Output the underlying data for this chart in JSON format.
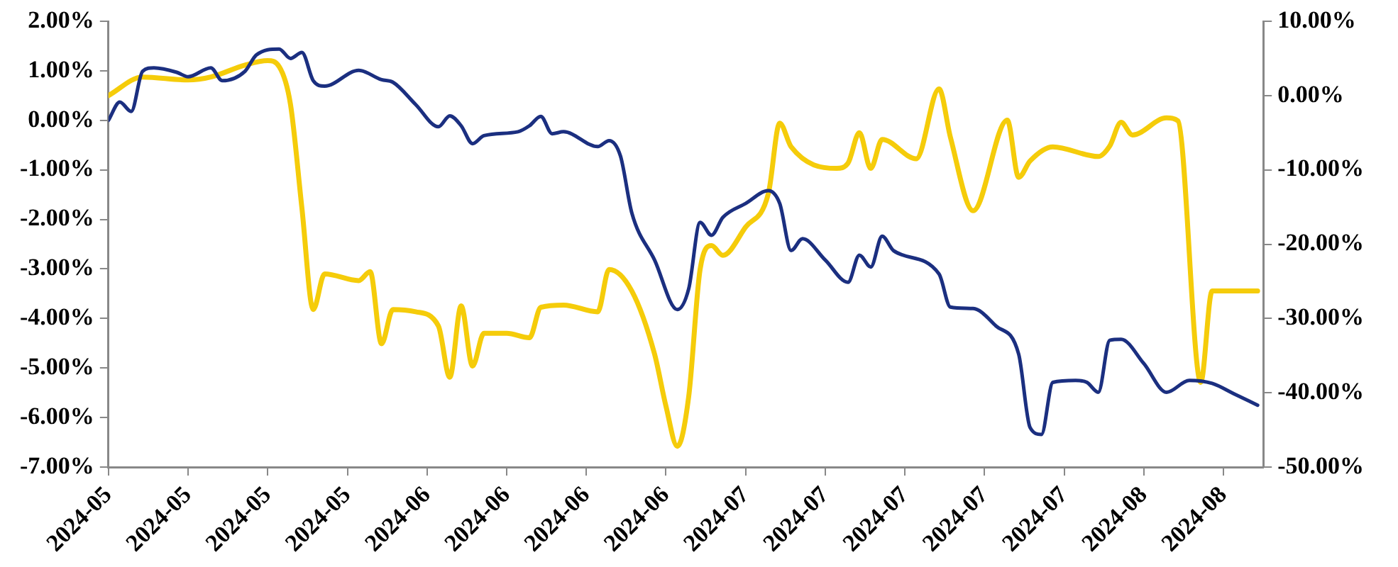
{
  "chart_data": {
    "type": "line",
    "xlim": [
      "2024-05-06",
      "2024-08-15T12:00"
    ],
    "xticks": [
      {
        "value": "2024-05-06",
        "label": "2024-05"
      },
      {
        "value": "2024-05-13",
        "label": "2024-05"
      },
      {
        "value": "2024-05-20",
        "label": "2024-05"
      },
      {
        "value": "2024-05-27",
        "label": "2024-05"
      },
      {
        "value": "2024-06-03",
        "label": "2024-06"
      },
      {
        "value": "2024-06-10",
        "label": "2024-06"
      },
      {
        "value": "2024-06-17",
        "label": "2024-06"
      },
      {
        "value": "2024-06-24",
        "label": "2024-06"
      },
      {
        "value": "2024-07-01",
        "label": "2024-07"
      },
      {
        "value": "2024-07-08",
        "label": "2024-07"
      },
      {
        "value": "2024-07-15",
        "label": "2024-07"
      },
      {
        "value": "2024-07-22",
        "label": "2024-07"
      },
      {
        "value": "2024-07-29",
        "label": "2024-07"
      },
      {
        "value": "2024-08-05",
        "label": "2024-08"
      },
      {
        "value": "2024-08-12",
        "label": "2024-08"
      }
    ],
    "ylim": [
      -7,
      2
    ],
    "yticks": [
      {
        "value": 2,
        "label": "2.00%"
      },
      {
        "value": 1,
        "label": "1.00%"
      },
      {
        "value": 0,
        "label": "0.00%"
      },
      {
        "value": -1,
        "label": "-1.00%"
      },
      {
        "value": -2,
        "label": "-2.00%"
      },
      {
        "value": -3,
        "label": "-3.00%"
      },
      {
        "value": -4,
        "label": "-4.00%"
      },
      {
        "value": -5,
        "label": "-5.00%"
      },
      {
        "value": -6,
        "label": "-6.00%"
      },
      {
        "value": -7,
        "label": "-7.00%"
      }
    ],
    "y2lim": [
      -50,
      10
    ],
    "y2ticks": [
      {
        "value": 10,
        "label": "10.00%"
      },
      {
        "value": 0,
        "label": "0.00%"
      },
      {
        "value": -10,
        "label": "-10.00%"
      },
      {
        "value": -20,
        "label": "-20.00%"
      },
      {
        "value": -30,
        "label": "-30.00%"
      },
      {
        "value": -40,
        "label": "-40.00%"
      },
      {
        "value": -50,
        "label": "-50.00%"
      }
    ],
    "grid": false,
    "legend": false,
    "series": [
      {
        "color": "#1b2f80",
        "axis": "y",
        "x": [
          "2024-05-06",
          "2024-05-07",
          "2024-05-08",
          "2024-05-09",
          "2024-05-10",
          "2024-05-12",
          "2024-05-13",
          "2024-05-15",
          "2024-05-16",
          "2024-05-18",
          "2024-05-19",
          "2024-05-21",
          "2024-05-22",
          "2024-05-23",
          "2024-05-24",
          "2024-05-25",
          "2024-05-28",
          "2024-05-30",
          "2024-05-31",
          "2024-06-02",
          "2024-06-04",
          "2024-06-05",
          "2024-06-06",
          "2024-06-07",
          "2024-06-08",
          "2024-06-11",
          "2024-06-12",
          "2024-06-13",
          "2024-06-14",
          "2024-06-15",
          "2024-06-18",
          "2024-06-19",
          "2024-06-20",
          "2024-06-21",
          "2024-06-23",
          "2024-06-25",
          "2024-06-26",
          "2024-06-27",
          "2024-06-28",
          "2024-06-29",
          "2024-07-01",
          "2024-07-03",
          "2024-07-04",
          "2024-07-05",
          "2024-07-06",
          "2024-07-08",
          "2024-07-10",
          "2024-07-11",
          "2024-07-12",
          "2024-07-13",
          "2024-07-14",
          "2024-07-18",
          "2024-07-19",
          "2024-07-21",
          "2024-07-23",
          "2024-07-25",
          "2024-07-26",
          "2024-07-27",
          "2024-07-28",
          "2024-07-30",
          "2024-07-31",
          "2024-08-01",
          "2024-08-02",
          "2024-08-03",
          "2024-08-05",
          "2024-08-07",
          "2024-08-09",
          "2024-08-11",
          "2024-08-13",
          "2024-08-15"
        ],
        "values": [
          0.0,
          0.37,
          0.18,
          0.99,
          1.06,
          0.97,
          0.88,
          1.06,
          0.8,
          0.99,
          1.32,
          1.44,
          1.25,
          1.37,
          0.8,
          0.69,
          1.01,
          0.82,
          0.77,
          0.32,
          -0.13,
          0.09,
          -0.11,
          -0.47,
          -0.31,
          -0.23,
          -0.11,
          0.08,
          -0.27,
          -0.23,
          -0.53,
          -0.41,
          -0.72,
          -1.87,
          -2.82,
          -3.82,
          -3.4,
          -2.06,
          -2.32,
          -1.96,
          -1.68,
          -1.42,
          -1.68,
          -2.63,
          -2.39,
          -2.82,
          -3.27,
          -2.72,
          -2.96,
          -2.34,
          -2.63,
          -3.1,
          -3.77,
          -3.8,
          -4.15,
          -4.72,
          -6.2,
          -6.34,
          -5.29,
          -5.25,
          -5.29,
          -5.49,
          -4.44,
          -4.42,
          -4.91,
          -5.49,
          -5.25,
          -5.31,
          -5.53,
          -5.75
        ]
      },
      {
        "color": "#f5cc0a",
        "axis": "y2",
        "x": [
          "2024-05-06",
          "2024-05-09",
          "2024-05-13",
          "2024-05-15",
          "2024-05-18",
          "2024-05-20",
          "2024-05-21",
          "2024-05-22",
          "2024-05-23",
          "2024-05-24",
          "2024-05-25",
          "2024-05-28",
          "2024-05-29",
          "2024-05-30",
          "2024-05-31",
          "2024-06-02",
          "2024-06-04",
          "2024-06-05",
          "2024-06-06",
          "2024-06-07",
          "2024-06-08",
          "2024-06-10",
          "2024-06-12",
          "2024-06-13",
          "2024-06-15",
          "2024-06-18",
          "2024-06-19",
          "2024-06-21",
          "2024-06-23",
          "2024-06-24",
          "2024-06-25",
          "2024-06-26",
          "2024-06-27",
          "2024-06-28",
          "2024-06-29",
          "2024-07-01",
          "2024-07-03",
          "2024-07-04",
          "2024-07-05",
          "2024-07-09",
          "2024-07-10",
          "2024-07-11",
          "2024-07-12",
          "2024-07-13",
          "2024-07-16",
          "2024-07-18",
          "2024-07-19",
          "2024-07-21",
          "2024-07-24",
          "2024-07-25",
          "2024-07-26",
          "2024-07-28",
          "2024-08-01",
          "2024-08-02",
          "2024-08-03",
          "2024-08-04",
          "2024-08-07",
          "2024-08-08",
          "2024-08-10",
          "2024-08-11",
          "2024-08-15"
        ],
        "values": [
          0,
          2.5,
          2.1,
          2.5,
          4.1,
          4.7,
          3.9,
          -1.2,
          -15.1,
          -28.8,
          -24,
          -24.9,
          -23.7,
          -33.4,
          -28.8,
          -29.1,
          -31,
          -37.9,
          -28.3,
          -36.4,
          -32,
          -32,
          -32.6,
          -28.5,
          -28.2,
          -29.1,
          -23.4,
          -26.3,
          -34.8,
          -41.8,
          -47.2,
          -40.5,
          -23.4,
          -20.2,
          -21.5,
          -17.7,
          -13.2,
          -3.7,
          -6.9,
          -9.8,
          -9.1,
          -5,
          -9.8,
          -5.9,
          -8.5,
          0.9,
          -5.6,
          -15.5,
          -3.3,
          -11,
          -8.8,
          -6.9,
          -8.2,
          -6.8,
          -3.6,
          -5.3,
          -3,
          -3.4,
          -38.6,
          -26.3,
          -26.3
        ]
      }
    ]
  }
}
